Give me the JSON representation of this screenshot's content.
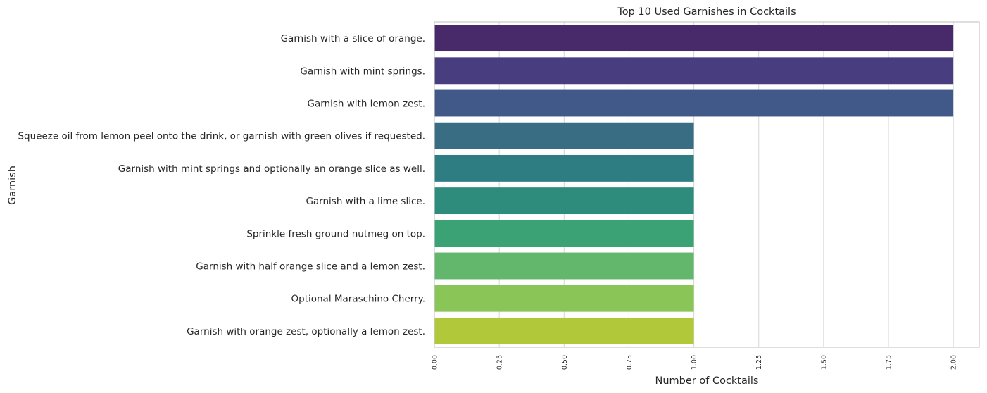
{
  "chart_data": {
    "type": "bar",
    "orientation": "horizontal",
    "title": "Top 10 Used Garnishes in Cocktails",
    "xlabel": "Number of Cocktails",
    "ylabel": "Garnish",
    "xlim": [
      0,
      2.1
    ],
    "xticks": [
      0.0,
      0.25,
      0.5,
      0.75,
      1.0,
      1.25,
      1.5,
      1.75,
      2.0
    ],
    "xtick_labels": [
      "0.00",
      "0.25",
      "0.50",
      "0.75",
      "1.00",
      "1.25",
      "1.50",
      "1.75",
      "2.00"
    ],
    "grid": true,
    "categories": [
      "Garnish with a slice of orange.",
      "Garnish with mint springs.",
      "Garnish with lemon zest.",
      "Squeeze oil from lemon peel onto the drink, or garnish with green olives if requested.",
      "Garnish with mint springs and optionally an orange slice as well.",
      "Garnish with a lime slice.",
      "Sprinkle fresh ground nutmeg on top.",
      "Garnish with half orange slice and a lemon zest.",
      "Optional Maraschino Cherry.",
      "Garnish with orange zest, optionally a lemon zest."
    ],
    "values": [
      2,
      2,
      2,
      1,
      1,
      1,
      1,
      1,
      1,
      1
    ],
    "colors": [
      "#482a6b",
      "#483d7e",
      "#405988",
      "#396d84",
      "#2e7d83",
      "#2e8c7d",
      "#3aa275",
      "#62b76d",
      "#8ac657",
      "#b0c839"
    ]
  }
}
